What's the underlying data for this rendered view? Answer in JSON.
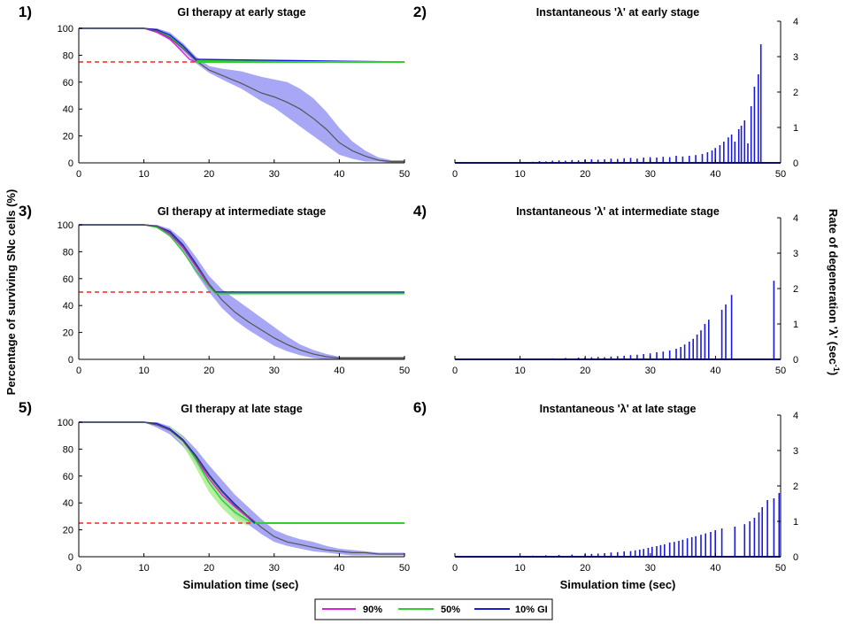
{
  "figure": {
    "left_ylabel": "Percentage of surviving SNc cells (%)",
    "right_ylabel_main": "Rate of degeneration 'λ' (sec",
    "right_ylabel_sup": "-1",
    "right_ylabel_end": ")",
    "xlabel": "Simulation time (sec)"
  },
  "legend": [
    {
      "label": "90%",
      "color": "#e020e0"
    },
    {
      "label": "50%",
      "color": "#33cc33"
    },
    {
      "label": "10% GI",
      "color": "#1a1adb"
    }
  ],
  "colors": {
    "band_blue": "#a7a7f5",
    "band_green": "#a8ef90",
    "mean": "#555555",
    "target": "#ff2020",
    "bar": "#1a1adb"
  },
  "chart_data": [
    {
      "id": "1",
      "panel_label": "1)",
      "type": "line",
      "title": "GI therapy at early stage",
      "xlim": [
        0,
        50
      ],
      "ylim": [
        0,
        100
      ],
      "xticks": [
        0,
        10,
        20,
        30,
        40,
        50
      ],
      "yticks": [
        0,
        20,
        40,
        60,
        80,
        100
      ],
      "target_level": 75,
      "plateau": {
        "x_start": 18,
        "x_end": 50,
        "y": 75
      },
      "mean": {
        "x": [
          0,
          10,
          12,
          14,
          16,
          18,
          20,
          22,
          25,
          28,
          30,
          32,
          34,
          36,
          38,
          40,
          42,
          44,
          46,
          48,
          50
        ],
        "y": [
          100,
          100,
          98,
          93,
          85,
          76,
          69,
          65,
          59,
          52,
          49,
          45,
          40,
          33,
          25,
          15,
          9,
          5,
          2,
          1,
          1
        ]
      },
      "band": {
        "x": [
          0,
          10,
          12,
          14,
          16,
          18,
          20,
          22,
          25,
          28,
          30,
          32,
          34,
          36,
          38,
          40,
          42,
          44,
          46,
          48,
          50
        ],
        "upper": [
          100,
          100,
          100,
          97,
          89,
          79,
          72,
          70,
          68,
          64,
          62,
          60,
          55,
          48,
          38,
          26,
          16,
          9,
          4,
          2,
          2
        ],
        "lower": [
          100,
          100,
          97,
          91,
          83,
          74,
          67,
          62,
          55,
          46,
          41,
          34,
          27,
          20,
          13,
          6,
          3,
          1,
          1,
          0,
          0
        ]
      },
      "band_color": "blue",
      "series": [
        {
          "name": "90%",
          "x": [
            0,
            10,
            12,
            14,
            16,
            17,
            18,
            50
          ],
          "y": [
            100,
            100,
            97,
            92,
            82,
            77,
            75,
            75
          ]
        },
        {
          "name": "50%",
          "x": [
            0,
            10,
            12,
            14,
            16,
            18,
            50
          ],
          "y": [
            100,
            100,
            98,
            94,
            86,
            76,
            75
          ]
        },
        {
          "name": "10% GI",
          "x": [
            0,
            10,
            12,
            14,
            16,
            18,
            50
          ],
          "y": [
            100,
            100,
            99,
            95,
            87,
            77,
            75
          ]
        }
      ]
    },
    {
      "id": "2",
      "panel_label": "2)",
      "type": "bar",
      "title": "Instantaneous 'λ' at early stage",
      "xlim": [
        0,
        50
      ],
      "ylim": [
        0,
        4
      ],
      "xticks": [
        0,
        10,
        20,
        30,
        40,
        50
      ],
      "yticks": [
        0,
        1,
        2,
        3,
        4
      ],
      "bars": {
        "x": [
          10,
          12,
          13,
          14,
          15,
          16,
          17,
          18,
          19,
          20,
          21,
          22,
          23,
          24,
          25,
          26,
          27,
          28,
          29,
          30,
          31,
          32,
          33,
          34,
          35,
          36,
          37,
          38,
          38.8,
          39.5,
          40,
          40.7,
          41.3,
          42,
          42.5,
          43,
          43.6,
          44,
          44.5,
          45,
          45.5,
          46,
          46.6,
          47
        ],
        "y": [
          0.02,
          0.03,
          0.05,
          0.04,
          0.06,
          0.07,
          0.06,
          0.08,
          0.07,
          0.09,
          0.1,
          0.09,
          0.1,
          0.12,
          0.11,
          0.13,
          0.14,
          0.12,
          0.15,
          0.16,
          0.15,
          0.17,
          0.16,
          0.2,
          0.18,
          0.2,
          0.22,
          0.25,
          0.3,
          0.35,
          0.42,
          0.5,
          0.6,
          0.72,
          0.8,
          0.6,
          0.95,
          1.05,
          1.2,
          0.55,
          1.6,
          2.15,
          2.5,
          3.35
        ]
      }
    },
    {
      "id": "3",
      "panel_label": "3)",
      "type": "line",
      "title": "GI therapy at intermediate stage",
      "xlim": [
        0,
        50
      ],
      "ylim": [
        0,
        100
      ],
      "xticks": [
        0,
        10,
        20,
        30,
        40,
        50
      ],
      "yticks": [
        0,
        20,
        40,
        60,
        80,
        100
      ],
      "target_level": 50,
      "plateau": {
        "x_start": 21,
        "x_end": 50,
        "y": 49
      },
      "mean": {
        "x": [
          0,
          10,
          12,
          14,
          16,
          18,
          20,
          22,
          24,
          26,
          28,
          30,
          32,
          34,
          36,
          38,
          40,
          42,
          44,
          50
        ],
        "y": [
          100,
          100,
          99,
          94,
          84,
          70,
          56,
          44,
          35,
          28,
          22,
          16,
          11,
          7,
          4,
          2,
          1,
          1,
          1,
          1
        ]
      },
      "band": {
        "x": [
          0,
          10,
          12,
          14,
          16,
          18,
          20,
          22,
          24,
          26,
          28,
          30,
          32,
          34,
          36,
          38,
          40,
          42,
          44,
          50
        ],
        "upper": [
          100,
          100,
          100,
          97,
          89,
          76,
          62,
          52,
          45,
          38,
          31,
          24,
          17,
          11,
          7,
          4,
          2,
          2,
          2,
          2
        ],
        "lower": [
          100,
          100,
          98,
          91,
          80,
          64,
          50,
          38,
          29,
          22,
          16,
          10,
          6,
          3,
          1,
          0,
          0,
          0,
          0,
          0
        ]
      },
      "band_color": "blue",
      "series": [
        {
          "name": "90%",
          "x": [
            0,
            10,
            12,
            14,
            16,
            18,
            20,
            21,
            50
          ],
          "y": [
            100,
            100,
            99,
            93,
            83,
            69,
            55,
            49,
            49
          ]
        },
        {
          "name": "50%",
          "x": [
            0,
            10,
            12,
            14,
            16,
            18,
            20,
            21,
            50
          ],
          "y": [
            100,
            100,
            98,
            92,
            80,
            66,
            54,
            49,
            49
          ]
        },
        {
          "name": "10% GI",
          "x": [
            0,
            10,
            12,
            14,
            16,
            18,
            20,
            21,
            50
          ],
          "y": [
            100,
            100,
            99,
            95,
            85,
            71,
            56,
            50,
            50
          ]
        }
      ]
    },
    {
      "id": "4",
      "panel_label": "4)",
      "type": "bar",
      "title": "Instantaneous 'λ' at intermediate stage",
      "xlim": [
        0,
        50
      ],
      "ylim": [
        0,
        4
      ],
      "xticks": [
        0,
        10,
        20,
        30,
        40,
        50
      ],
      "yticks": [
        0,
        1,
        2,
        3,
        4
      ],
      "bars": {
        "x": [
          10,
          13,
          15,
          17,
          19,
          20,
          21,
          22,
          23,
          24,
          25,
          26,
          27,
          28,
          29,
          30,
          31,
          32,
          33,
          34,
          34.7,
          35.3,
          36,
          36.6,
          37.2,
          37.8,
          38.4,
          39,
          41,
          41.6,
          42.5,
          49
        ],
        "y": [
          0.01,
          0.02,
          0.03,
          0.04,
          0.05,
          0.05,
          0.06,
          0.07,
          0.06,
          0.08,
          0.09,
          0.1,
          0.12,
          0.13,
          0.15,
          0.17,
          0.2,
          0.22,
          0.25,
          0.3,
          0.35,
          0.42,
          0.5,
          0.58,
          0.7,
          0.82,
          1.0,
          1.12,
          1.4,
          1.55,
          1.82,
          2.22
        ]
      }
    },
    {
      "id": "5",
      "panel_label": "5)",
      "type": "line",
      "title": "GI therapy at late stage",
      "xlim": [
        0,
        50
      ],
      "ylim": [
        0,
        100
      ],
      "xticks": [
        0,
        10,
        20,
        30,
        40,
        50
      ],
      "yticks": [
        0,
        20,
        40,
        60,
        80,
        100
      ],
      "target_level": 25,
      "plateau": {
        "x_start": 27,
        "x_end": 50,
        "y": 25
      },
      "mean": {
        "x": [
          0,
          10,
          12,
          14,
          16,
          18,
          20,
          22,
          24,
          26,
          28,
          30,
          32,
          34,
          36,
          38,
          40,
          42,
          44,
          46,
          48,
          50
        ],
        "y": [
          100,
          100,
          98,
          94,
          86,
          74,
          60,
          48,
          38,
          30,
          22,
          15,
          11,
          9,
          7,
          5,
          4,
          3,
          3,
          2,
          2,
          2
        ]
      },
      "band": {
        "x": [
          0,
          10,
          12,
          14,
          16,
          18,
          20,
          22,
          24,
          26,
          28,
          30,
          32,
          34,
          36,
          38,
          40,
          42,
          44,
          46,
          48,
          50
        ],
        "upper": [
          100,
          100,
          100,
          97,
          90,
          80,
          68,
          57,
          46,
          37,
          28,
          20,
          16,
          13,
          11,
          8,
          6,
          5,
          4,
          3,
          3,
          3
        ],
        "lower": [
          100,
          100,
          96,
          91,
          82,
          69,
          54,
          41,
          31,
          24,
          17,
          11,
          8,
          6,
          4,
          3,
          2,
          1,
          1,
          1,
          1,
          1
        ]
      },
      "band2": {
        "x": [
          14,
          16,
          18,
          20,
          22,
          24,
          26
        ],
        "upper": [
          97,
          89,
          76,
          62,
          50,
          40,
          32
        ],
        "lower": [
          93,
          83,
          66,
          48,
          36,
          27,
          23
        ]
      },
      "band_color": "blue",
      "series": [
        {
          "name": "90%",
          "x": [
            0,
            10,
            12,
            14,
            16,
            18,
            20,
            22,
            24,
            26,
            27,
            50
          ],
          "y": [
            100,
            100,
            98,
            94,
            86,
            73,
            58,
            46,
            37,
            29,
            25,
            25
          ]
        },
        {
          "name": "50%",
          "x": [
            0,
            10,
            12,
            14,
            16,
            18,
            20,
            22,
            24,
            26,
            27,
            50
          ],
          "y": [
            100,
            100,
            98,
            95,
            87,
            72,
            55,
            42,
            33,
            27,
            25,
            25
          ]
        },
        {
          "name": "10% GI",
          "x": [
            0,
            10,
            12,
            14,
            16,
            18,
            20,
            22,
            24,
            26,
            27,
            50
          ],
          "y": [
            100,
            100,
            99,
            95,
            87,
            75,
            61,
            49,
            39,
            30,
            25,
            25
          ]
        }
      ]
    },
    {
      "id": "6",
      "panel_label": "6)",
      "type": "bar",
      "title": "Instantaneous 'λ' at late stage",
      "xlim": [
        0,
        50
      ],
      "ylim": [
        0,
        4
      ],
      "xticks": [
        0,
        10,
        20,
        30,
        40,
        50
      ],
      "yticks": [
        0,
        1,
        2,
        3,
        4
      ],
      "bars": {
        "x": [
          10,
          12,
          14,
          16,
          18,
          20,
          21,
          22,
          23,
          24,
          25,
          26,
          27,
          27.7,
          28.4,
          29,
          29.7,
          30.3,
          31,
          31.6,
          32.2,
          33,
          33.7,
          34.4,
          35,
          35.7,
          36.4,
          37,
          37.8,
          38.5,
          39.3,
          40,
          41,
          43,
          44.5,
          45.3,
          46,
          46.7,
          47.2,
          48,
          49,
          49.8
        ],
        "y": [
          0.02,
          0.03,
          0.04,
          0.05,
          0.06,
          0.07,
          0.08,
          0.09,
          0.1,
          0.12,
          0.13,
          0.15,
          0.16,
          0.18,
          0.2,
          0.22,
          0.25,
          0.28,
          0.3,
          0.33,
          0.35,
          0.4,
          0.42,
          0.45,
          0.48,
          0.52,
          0.55,
          0.58,
          0.62,
          0.66,
          0.7,
          0.75,
          0.8,
          0.85,
          0.92,
          1.0,
          1.1,
          1.25,
          1.4,
          1.6,
          1.65,
          1.8
        ]
      }
    }
  ]
}
